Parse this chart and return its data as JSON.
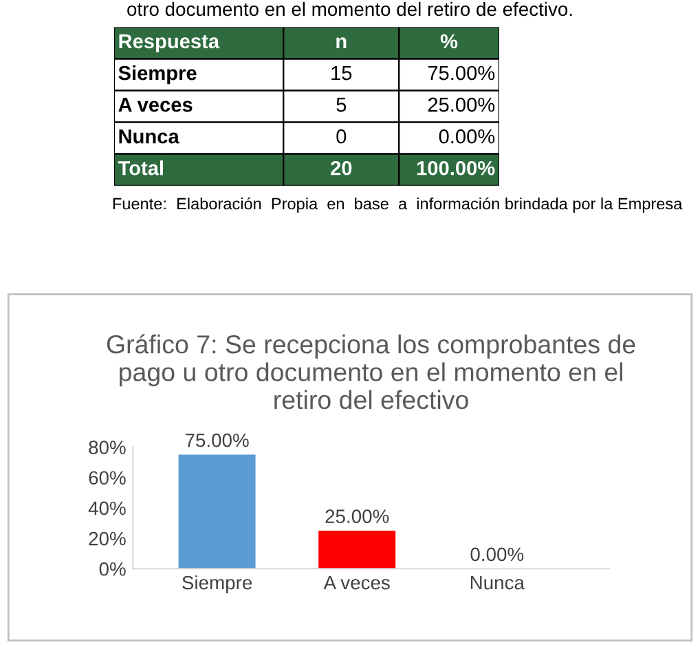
{
  "chart_data": [
    {
      "type": "other",
      "title": "otro documento en el momento del retiro de efectivo.",
      "legend_title": "Respuesta",
      "categories": [
        "Siempre",
        "A veces",
        "Nunca",
        "Total"
      ],
      "colors": [
        "#ffffff",
        "#ffffff",
        "#ffffff",
        "#2e6b3f"
      ],
      "data_labels": true,
      "series": [
        {
          "name": "n",
          "colors": [
            "#ffffff",
            "#ffffff",
            "#ffffff",
            "#2e6b3f"
          ],
          "values": [
            15,
            5,
            0,
            20
          ]
        },
        {
          "name": "%",
          "colors": [
            "#ffffff",
            "#ffffff",
            "#ffffff",
            "#2e6b3f"
          ],
          "values": [
            75,
            25,
            0,
            100
          ],
          "value_labels": [
            "75.00%",
            "25.00%",
            "0.00%",
            "100.00%"
          ]
        }
      ],
      "annotations": [
        "Fuente:  Elaboración  Propia  en  base  a  información brindada por la Empresa"
      ]
    },
    {
      "type": "bar",
      "title": "Gráfico 7: Se recepciona los comprobantes de\npago u otro documento en el momento en el\nretiro del efectivo",
      "categories": [
        "Siempre",
        "A veces",
        "Nunca"
      ],
      "values": [
        75,
        25,
        0
      ],
      "colors": [
        "#5b9bd5",
        "#ff0000",
        "#c8c800"
      ],
      "value_labels": [
        "75.00%",
        "25.00%",
        "0.00%"
      ],
      "ylim": [
        0,
        80
      ],
      "yticks": [
        {
          "value": 0,
          "label": "0%"
        },
        {
          "value": 20,
          "label": "20%"
        },
        {
          "value": 40,
          "label": "40%"
        },
        {
          "value": 60,
          "label": "60%"
        },
        {
          "value": 80,
          "label": "80%"
        }
      ],
      "grid": false,
      "legend": false
    }
  ]
}
